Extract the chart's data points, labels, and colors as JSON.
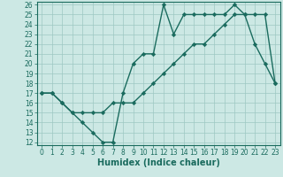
{
  "xlabel": "Humidex (Indice chaleur)",
  "x_values": [
    0,
    1,
    2,
    3,
    4,
    5,
    6,
    7,
    8,
    9,
    10,
    11,
    12,
    13,
    14,
    15,
    16,
    17,
    18,
    19,
    20,
    21,
    22,
    23
  ],
  "line1_y": [
    17,
    17,
    16,
    15,
    14,
    13,
    12,
    12,
    17,
    20,
    21,
    21,
    26,
    23,
    25,
    25,
    25,
    25,
    25,
    26,
    25,
    22,
    20,
    18
  ],
  "line2_y": [
    17,
    17,
    16,
    15,
    15,
    15,
    15,
    16,
    16,
    16,
    17,
    18,
    19,
    20,
    21,
    22,
    22,
    23,
    24,
    25,
    25,
    25,
    25,
    18
  ],
  "line_color": "#1a6b5e",
  "bg_color": "#cce8e4",
  "grid_color": "#9ec8c2",
  "ylim": [
    12,
    26
  ],
  "xlim": [
    -0.5,
    23.5
  ],
  "yticks": [
    12,
    13,
    14,
    15,
    16,
    17,
    18,
    19,
    20,
    21,
    22,
    23,
    24,
    25,
    26
  ],
  "xticks": [
    0,
    1,
    2,
    3,
    4,
    5,
    6,
    7,
    8,
    9,
    10,
    11,
    12,
    13,
    14,
    15,
    16,
    17,
    18,
    19,
    20,
    21,
    22,
    23
  ],
  "marker": "D",
  "markersize": 2.2,
  "linewidth": 1.0,
  "xlabel_fontsize": 7,
  "tick_fontsize": 5.5
}
